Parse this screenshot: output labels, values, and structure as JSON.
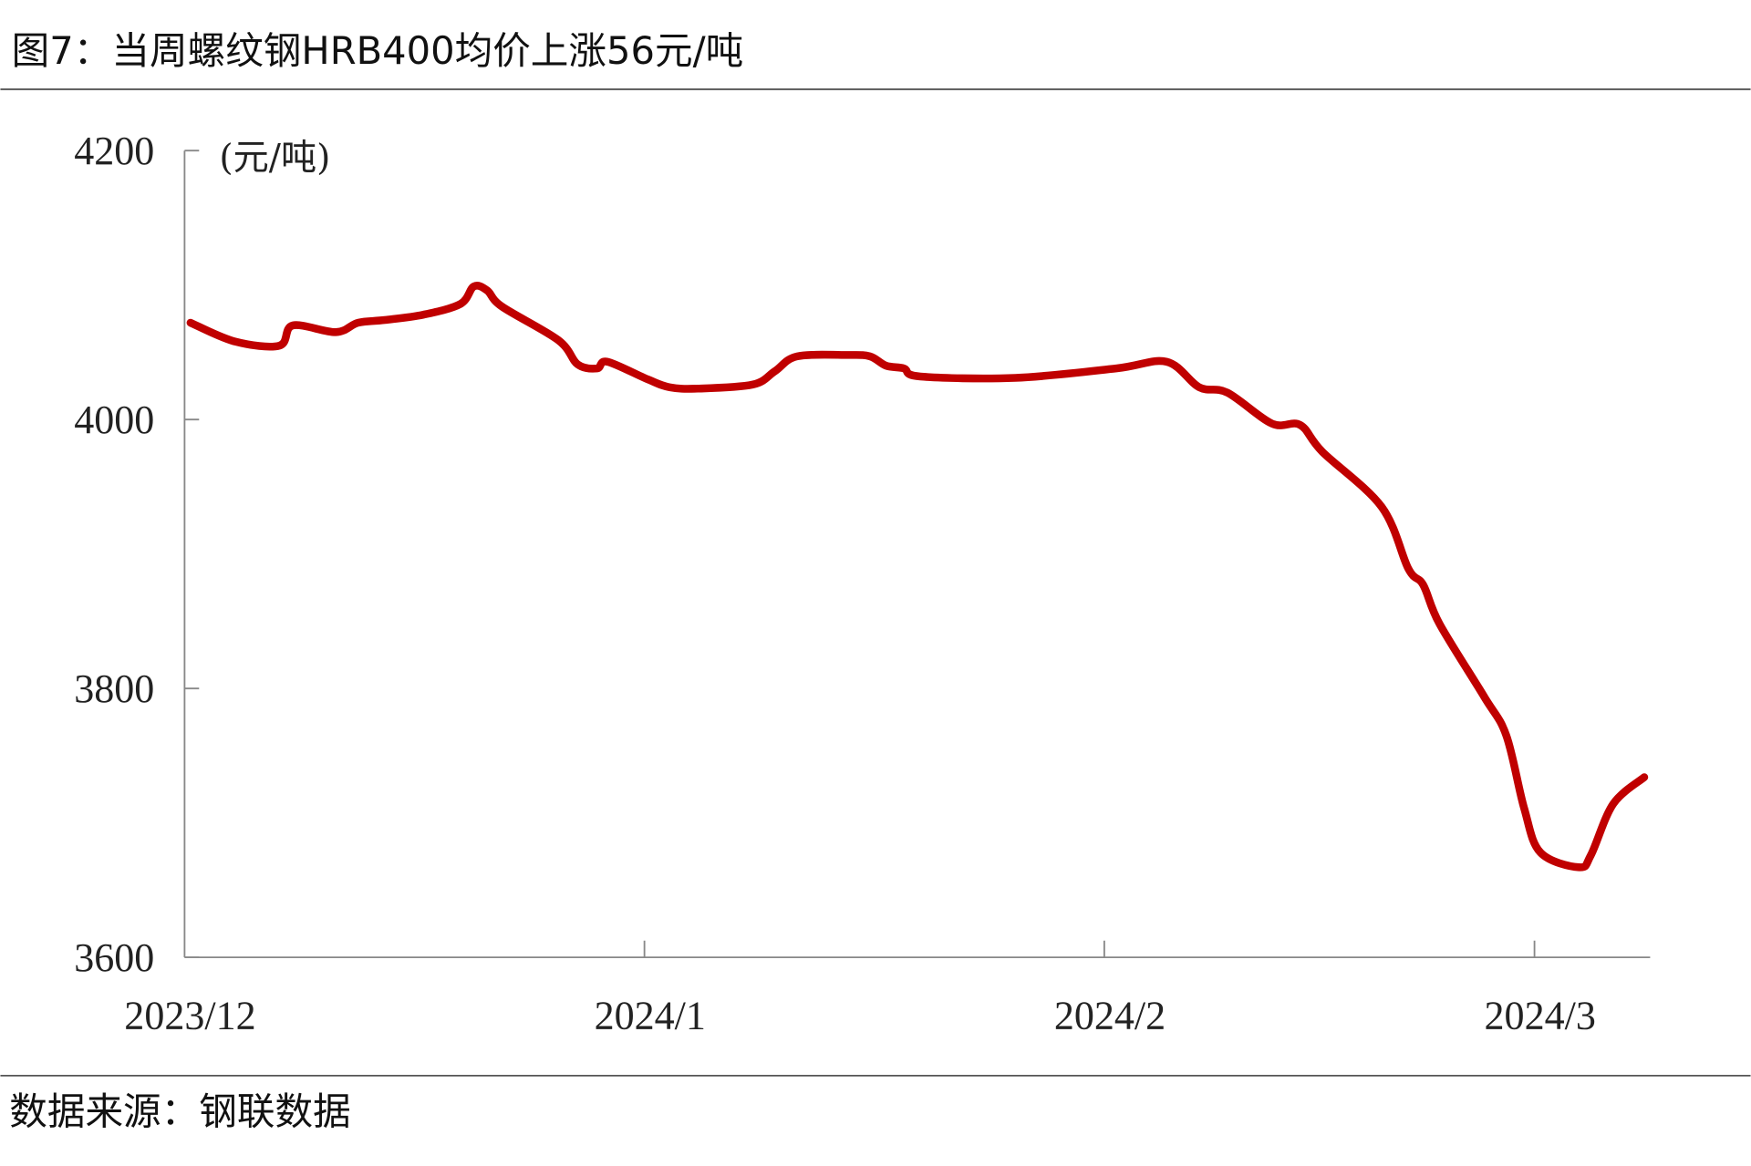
{
  "header": {
    "title": "图7：当周螺纹钢HRB400均价上涨56元/吨"
  },
  "footer": {
    "source": "数据来源：钢联数据"
  },
  "chart_data": {
    "type": "line",
    "title": "图7：当周螺纹钢HRB400均价上涨56元/吨",
    "ylabel": "(元/吨)",
    "xlabel": "",
    "ylim": [
      3600,
      4200
    ],
    "yticks": [
      4200,
      4000,
      3800,
      3600
    ],
    "ytick_labels": [
      "4200",
      "4000",
      "3800",
      "3600"
    ],
    "xaxis_unit": "days since 2023-12-01",
    "xlim": [
      0,
      99
    ],
    "xticks": [
      0,
      31,
      62,
      91
    ],
    "xtick_labels": [
      "2023/12",
      "2024/1",
      "2024/2",
      "2024/3"
    ],
    "grid": false,
    "series": [
      {
        "name": "螺纹钢HRB400均价",
        "color": "#c00000",
        "x": [
          0.4,
          3.4,
          6.4,
          7.3,
          10.2,
          11.7,
          13.5,
          16.1,
          18.6,
          19.5,
          20.4,
          21.4,
          25.2,
          26.5,
          27.8,
          28.5,
          31.2,
          32.7,
          34.6,
          38.3,
          39.8,
          41.3,
          44.7,
          46.2,
          47.3,
          48.5,
          49.6,
          56,
          62.8,
          66.2,
          68.4,
          70.3,
          73.3,
          75.2,
          76.7,
          80.7,
          82.5,
          83.5,
          84.6,
          87.6,
          89.1,
          90.3,
          91.4,
          94,
          94.8,
          96.3,
          98.4
        ],
        "values": [
          4072,
          4058,
          4055,
          4070,
          4065,
          4072,
          4074,
          4078,
          4086,
          4099,
          4096,
          4084,
          4059,
          4041,
          4038,
          4043,
          4030,
          4024,
          4023,
          4026,
          4036,
          4047,
          4048,
          4047,
          4040,
          4038,
          4032,
          4031,
          4038,
          4043,
          4024,
          4020,
          3997,
          3996,
          3976,
          3935,
          3889,
          3877,
          3848,
          3794,
          3765,
          3711,
          3678,
          3667,
          3676,
          3714,
          3734
        ]
      }
    ]
  }
}
